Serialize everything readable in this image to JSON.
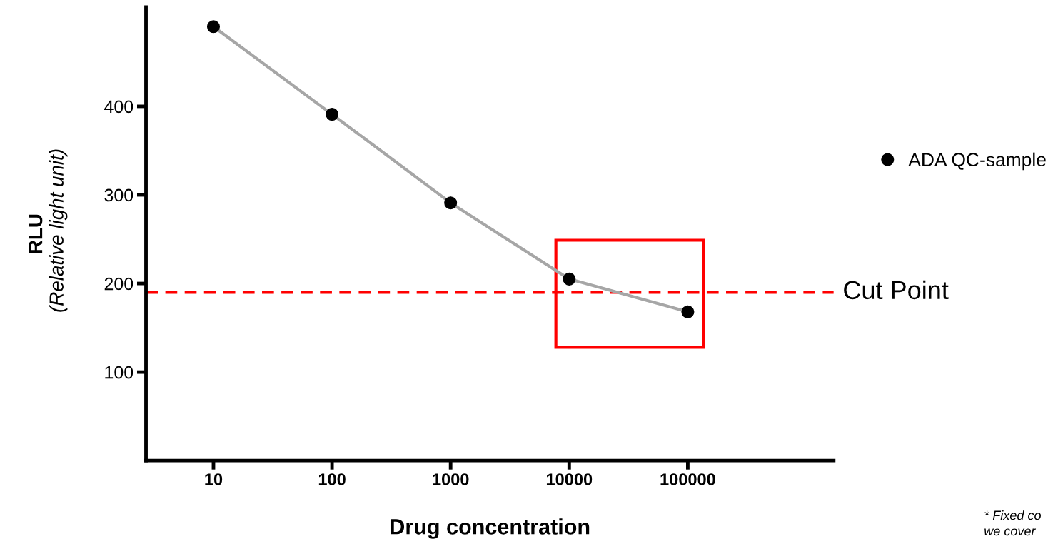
{
  "chart_data": {
    "type": "line",
    "xlabel": "Drug concentration",
    "ylabel": "RLU",
    "x": [
      10,
      100,
      1000,
      10000,
      100000
    ],
    "series": [
      {
        "name": "ADA QC-sample",
        "color": "#a6a6a6",
        "values": [
          490,
          391,
          291,
          205,
          168
        ]
      }
    ],
    "log": "x",
    "xlim": [
      2.7,
      1700000
    ],
    "xticks": [
      10,
      100,
      1000,
      10000,
      100000
    ],
    "ylim": [
      0,
      512
    ],
    "yticks": [
      100,
      200,
      300,
      400
    ],
    "marker": "circle",
    "line_style": "solid",
    "grid": false,
    "legend": "right",
    "ref_lines": [
      {
        "axis": "y",
        "value": 190,
        "label": "Cut Point",
        "color": "#ff0000",
        "line_style": "dashed"
      }
    ],
    "annotations": [
      "(Relative light unit)",
      "* Fixed co\nwe cover"
    ]
  }
}
